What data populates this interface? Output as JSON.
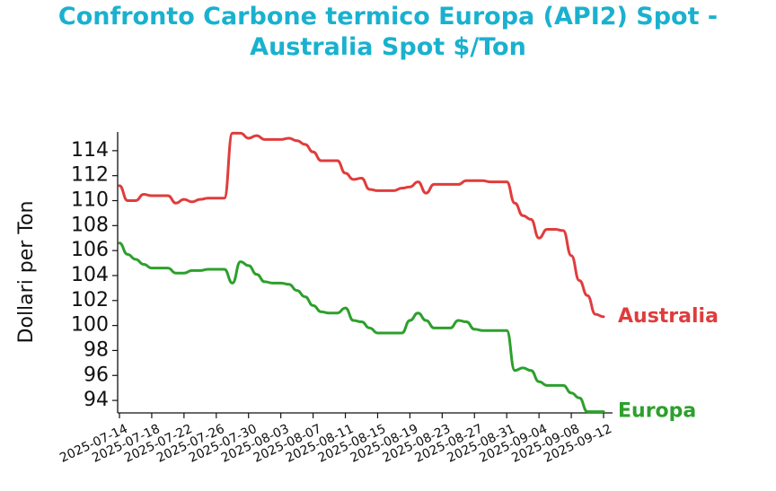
{
  "chart_data": {
    "type": "line",
    "title_lines": [
      "Confronto Carbone termico Europa (API2) Spot -",
      "Australia Spot $/Ton"
    ],
    "xlabel": "",
    "ylabel": "Dollari per Ton",
    "ylim": [
      93.0,
      115.5
    ],
    "yticks": [
      94,
      96,
      98,
      100,
      102,
      104,
      106,
      108,
      110,
      112,
      114
    ],
    "xticks": [
      "2025-07-14",
      "2025-07-18",
      "2025-07-22",
      "2025-07-26",
      "2025-07-30",
      "2025-08-03",
      "2025-08-07",
      "2025-08-11",
      "2025-08-15",
      "2025-08-19",
      "2025-08-23",
      "2025-08-27",
      "2025-08-31",
      "2025-09-04",
      "2025-09-08",
      "2025-09-12"
    ],
    "x_start": "2025-07-14",
    "x_end": "2025-09-12",
    "grid": false,
    "legend": "inline labels at line ends",
    "series": [
      {
        "name": "Australia",
        "color": "#e03c3c",
        "points": [
          [
            "2025-07-14",
            111.2
          ],
          [
            "2025-07-15",
            110.0
          ],
          [
            "2025-07-16",
            110.0
          ],
          [
            "2025-07-17",
            110.5
          ],
          [
            "2025-07-18",
            110.4
          ],
          [
            "2025-07-19",
            110.4
          ],
          [
            "2025-07-20",
            110.4
          ],
          [
            "2025-07-21",
            109.8
          ],
          [
            "2025-07-22",
            110.1
          ],
          [
            "2025-07-23",
            109.9
          ],
          [
            "2025-07-24",
            110.1
          ],
          [
            "2025-07-25",
            110.2
          ],
          [
            "2025-07-26",
            110.2
          ],
          [
            "2025-07-27",
            110.2
          ],
          [
            "2025-07-28",
            115.4
          ],
          [
            "2025-07-29",
            115.4
          ],
          [
            "2025-07-30",
            115.0
          ],
          [
            "2025-07-31",
            115.2
          ],
          [
            "2025-08-01",
            114.9
          ],
          [
            "2025-08-02",
            114.9
          ],
          [
            "2025-08-03",
            114.9
          ],
          [
            "2025-08-04",
            115.0
          ],
          [
            "2025-08-05",
            114.8
          ],
          [
            "2025-08-06",
            114.5
          ],
          [
            "2025-08-07",
            113.9
          ],
          [
            "2025-08-08",
            113.2
          ],
          [
            "2025-08-09",
            113.2
          ],
          [
            "2025-08-10",
            113.2
          ],
          [
            "2025-08-11",
            112.2
          ],
          [
            "2025-08-12",
            111.7
          ],
          [
            "2025-08-13",
            111.8
          ],
          [
            "2025-08-14",
            110.9
          ],
          [
            "2025-08-15",
            110.8
          ],
          [
            "2025-08-16",
            110.8
          ],
          [
            "2025-08-17",
            110.8
          ],
          [
            "2025-08-18",
            111.0
          ],
          [
            "2025-08-19",
            111.1
          ],
          [
            "2025-08-20",
            111.5
          ],
          [
            "2025-08-21",
            110.6
          ],
          [
            "2025-08-22",
            111.3
          ],
          [
            "2025-08-23",
            111.3
          ],
          [
            "2025-08-24",
            111.3
          ],
          [
            "2025-08-25",
            111.3
          ],
          [
            "2025-08-26",
            111.6
          ],
          [
            "2025-08-27",
            111.6
          ],
          [
            "2025-08-28",
            111.6
          ],
          [
            "2025-08-29",
            111.5
          ],
          [
            "2025-08-30",
            111.5
          ],
          [
            "2025-08-31",
            111.5
          ],
          [
            "2025-09-01",
            109.8
          ],
          [
            "2025-09-02",
            108.8
          ],
          [
            "2025-09-03",
            108.5
          ],
          [
            "2025-09-04",
            107.0
          ],
          [
            "2025-09-05",
            107.7
          ],
          [
            "2025-09-06",
            107.7
          ],
          [
            "2025-09-07",
            107.6
          ],
          [
            "2025-09-08",
            105.6
          ],
          [
            "2025-09-09",
            103.6
          ],
          [
            "2025-09-10",
            102.4
          ],
          [
            "2025-09-11",
            100.9
          ],
          [
            "2025-09-12",
            100.7
          ]
        ]
      },
      {
        "name": "Europa",
        "color": "#2ca02c",
        "points": [
          [
            "2025-07-14",
            106.6
          ],
          [
            "2025-07-15",
            105.7
          ],
          [
            "2025-07-16",
            105.3
          ],
          [
            "2025-07-17",
            104.9
          ],
          [
            "2025-07-18",
            104.6
          ],
          [
            "2025-07-19",
            104.6
          ],
          [
            "2025-07-20",
            104.6
          ],
          [
            "2025-07-21",
            104.2
          ],
          [
            "2025-07-22",
            104.2
          ],
          [
            "2025-07-23",
            104.4
          ],
          [
            "2025-07-24",
            104.4
          ],
          [
            "2025-07-25",
            104.5
          ],
          [
            "2025-07-26",
            104.5
          ],
          [
            "2025-07-27",
            104.5
          ],
          [
            "2025-07-28",
            103.4
          ],
          [
            "2025-07-29",
            105.1
          ],
          [
            "2025-07-30",
            104.8
          ],
          [
            "2025-07-31",
            104.1
          ],
          [
            "2025-08-01",
            103.5
          ],
          [
            "2025-08-02",
            103.4
          ],
          [
            "2025-08-03",
            103.4
          ],
          [
            "2025-08-04",
            103.3
          ],
          [
            "2025-08-05",
            102.8
          ],
          [
            "2025-08-06",
            102.3
          ],
          [
            "2025-08-07",
            101.6
          ],
          [
            "2025-08-08",
            101.1
          ],
          [
            "2025-08-09",
            101.0
          ],
          [
            "2025-08-10",
            101.0
          ],
          [
            "2025-08-11",
            101.4
          ],
          [
            "2025-08-12",
            100.4
          ],
          [
            "2025-08-13",
            100.3
          ],
          [
            "2025-08-14",
            99.8
          ],
          [
            "2025-08-15",
            99.4
          ],
          [
            "2025-08-16",
            99.4
          ],
          [
            "2025-08-17",
            99.4
          ],
          [
            "2025-08-18",
            99.4
          ],
          [
            "2025-08-19",
            100.4
          ],
          [
            "2025-08-20",
            101.0
          ],
          [
            "2025-08-21",
            100.4
          ],
          [
            "2025-08-22",
            99.8
          ],
          [
            "2025-08-23",
            99.8
          ],
          [
            "2025-08-24",
            99.8
          ],
          [
            "2025-08-25",
            100.4
          ],
          [
            "2025-08-26",
            100.3
          ],
          [
            "2025-08-27",
            99.7
          ],
          [
            "2025-08-28",
            99.6
          ],
          [
            "2025-08-29",
            99.6
          ],
          [
            "2025-08-30",
            99.6
          ],
          [
            "2025-08-31",
            99.6
          ],
          [
            "2025-09-01",
            96.4
          ],
          [
            "2025-09-02",
            96.6
          ],
          [
            "2025-09-03",
            96.4
          ],
          [
            "2025-09-04",
            95.5
          ],
          [
            "2025-09-05",
            95.2
          ],
          [
            "2025-09-06",
            95.2
          ],
          [
            "2025-09-07",
            95.2
          ],
          [
            "2025-09-08",
            94.6
          ],
          [
            "2025-09-09",
            94.2
          ],
          [
            "2025-09-10",
            93.1
          ],
          [
            "2025-09-11",
            93.1
          ],
          [
            "2025-09-12",
            93.1
          ]
        ]
      }
    ]
  }
}
